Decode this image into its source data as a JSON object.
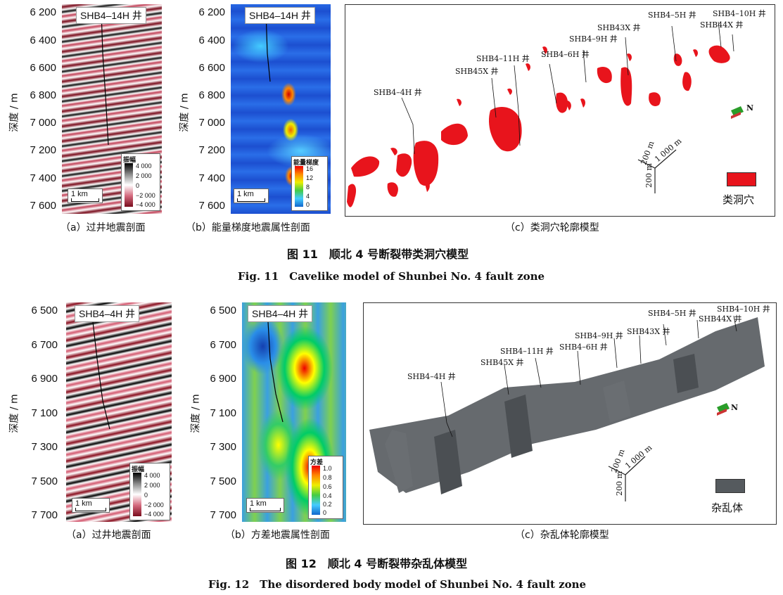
{
  "fig11": {
    "a": {
      "well": "SHB4–14H 井",
      "yticks": [
        "6 200",
        "6 400",
        "6 600",
        "6 800",
        "7 000",
        "7 200",
        "7 400",
        "7 600"
      ],
      "ylabel": "深度 / m",
      "scale": "1 km",
      "legend_title": "振幅",
      "legend_ticks": [
        "4 000",
        "2 000",
        "0",
        "−2 000",
        "−4 000"
      ],
      "caption": "（a）过井地震剖面"
    },
    "b": {
      "well": "SHB4–14H 井",
      "yticks": [
        "6 200",
        "6 400",
        "6 600",
        "6 800",
        "7 000",
        "7 200",
        "7 400",
        "7 600"
      ],
      "ylabel": "深度 / m",
      "scale": "1 km",
      "legend_title": "能量梯度",
      "legend_ticks": [
        "16",
        "12",
        "8",
        "4",
        "0"
      ],
      "caption": "（b）能量梯度地震属性剖面"
    },
    "c": {
      "wells": [
        "SHB4–4H 井",
        "SHB45X 井",
        "SHB4–11H 井",
        "SHB4–6H 井",
        "SHB4–9H 井",
        "SHB43X 井",
        "SHB4–5H 井",
        "SHB44X 井",
        "SHB4–10H 井"
      ],
      "axis_labels": [
        "200 m",
        "200 m",
        "1 000 m"
      ],
      "north": "N",
      "legend": "类洞穴",
      "caption": "（c）类洞穴轮廓模型"
    },
    "title_cn": "图 11　顺北 4 号断裂带类洞穴模型",
    "title_en": "Fig. 11　Cavelike model of Shunbei No. 4 fault zone"
  },
  "fig12": {
    "a": {
      "well": "SHB4–4H 井",
      "yticks": [
        "6 500",
        "6 700",
        "6 900",
        "7 100",
        "7 300",
        "7 500",
        "7 700"
      ],
      "ylabel": "深度 / m",
      "scale": "1 km",
      "legend_title": "振幅",
      "legend_ticks": [
        "4 000",
        "2 000",
        "0",
        "−2 000",
        "−4 000"
      ],
      "caption": "（a）过井地震剖面"
    },
    "b": {
      "well": "SHB4–4H 井",
      "yticks": [
        "6 500",
        "6 700",
        "6 900",
        "7 100",
        "7 300",
        "7 500",
        "7 700"
      ],
      "ylabel": "深度 / m",
      "scale": "1 km",
      "legend_title": "方差",
      "legend_ticks": [
        "1.0",
        "0.8",
        "0.6",
        "0.4",
        "0.2",
        "0"
      ],
      "caption": "（b）方差地震属性剖面"
    },
    "c": {
      "wells": [
        "SHB4–4H 井",
        "SHB45X 井",
        "SHB4–11H 井",
        "SHB4–6H 井",
        "SHB4–9H 井",
        "SHB43X 井",
        "SHB4–5H 井",
        "SHB44X 井",
        "SHB4–10H 井"
      ],
      "axis_labels": [
        "200 m",
        "200 m",
        "1 000 m"
      ],
      "north": "N",
      "legend": "杂乱体",
      "caption": "（c）杂乱体轮廓模型"
    },
    "title_cn": "图 12　顺北 4 号断裂带杂乱体模型",
    "title_en": "Fig. 12　The disordered body model of Shunbei No. 4 fault zone"
  },
  "colors": {
    "cave": "#e8141c",
    "disordered": "#555a5e"
  }
}
